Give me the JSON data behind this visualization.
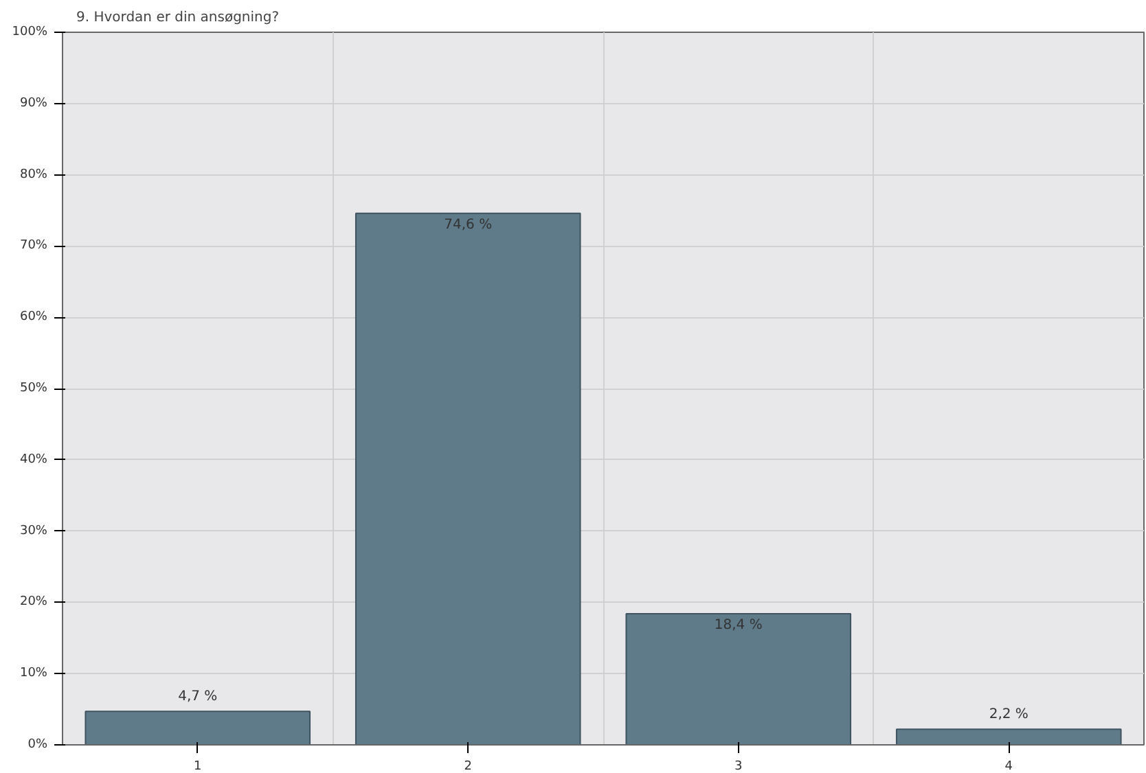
{
  "chart_data": {
    "type": "bar",
    "title": "9. Hvordan er din ansøgning?",
    "categories": [
      "1",
      "2",
      "3",
      "4"
    ],
    "values": [
      4.7,
      74.6,
      18.4,
      2.2
    ],
    "value_labels": [
      "4,7 %",
      "74,6 %",
      "18,4 %",
      "2,2 %"
    ],
    "color": "#5f7b8a",
    "ylim": [
      0,
      100
    ],
    "yticks": [
      {
        "value": 0,
        "label": "0%"
      },
      {
        "value": 10,
        "label": "10%"
      },
      {
        "value": 20,
        "label": "20%"
      },
      {
        "value": 30,
        "label": "30%"
      },
      {
        "value": 40,
        "label": "40%"
      },
      {
        "value": 50,
        "label": "50%"
      },
      {
        "value": 60,
        "label": "60%"
      },
      {
        "value": 70,
        "label": "70%"
      },
      {
        "value": 80,
        "label": "80%"
      },
      {
        "value": 90,
        "label": "90%"
      },
      {
        "value": 100,
        "label": "100%"
      }
    ],
    "grid": true
  }
}
